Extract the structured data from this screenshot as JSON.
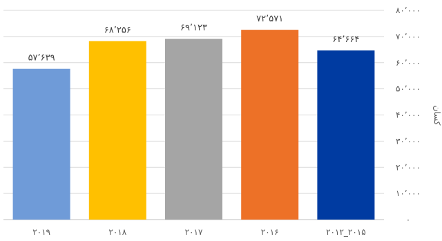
{
  "chart_data": {
    "type": "bar",
    "categories": [
      "۲۰۱۹",
      "۲۰۱۸",
      "۲۰۱۷",
      "۲۰۱۶",
      "۲۰۱۲_۲۰۱۵"
    ],
    "values": [
      57639,
      68256,
      69123,
      72571,
      64664
    ],
    "data_labels": [
      "۵۷٬۶۳۹",
      "۶۸٬۲۵۶",
      "۶۹٬۱۲۳",
      "۷۲٬۵۷۱",
      "۶۴٬۶۶۴"
    ],
    "colors": [
      "#6f9bd8",
      "#ffc000",
      "#a5a5a5",
      "#ed7127",
      "#003ba1"
    ],
    "ylabel": "کسان",
    "ylim": [
      0,
      80000
    ],
    "yticks": [
      0,
      10000,
      20000,
      30000,
      40000,
      50000,
      60000,
      70000,
      80000
    ],
    "ytick_labels": [
      "۰",
      "۱۰٬۰۰۰",
      "۲۰٬۰۰۰",
      "۳۰٬۰۰۰",
      "۴۰٬۰۰۰",
      "۵۰٬۰۰۰",
      "۶۰٬۰۰۰",
      "۷۰٬۰۰۰",
      "۸۰٬۰۰۰"
    ],
    "yaxis_position": "right",
    "grid": true
  }
}
